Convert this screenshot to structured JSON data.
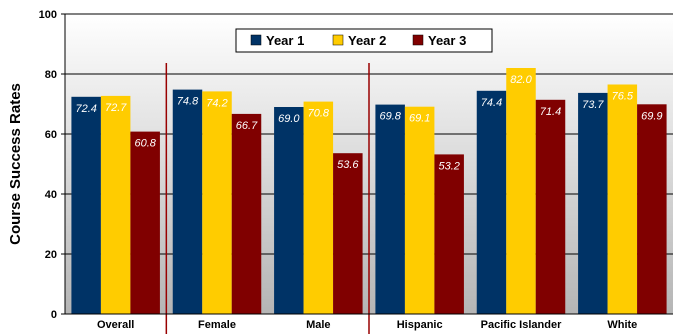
{
  "chart_data": {
    "type": "bar",
    "title": "",
    "xlabel": "",
    "ylabel": "Course Success Rates",
    "ylim": [
      0,
      100
    ],
    "yticks": [
      0,
      20,
      40,
      60,
      80,
      100
    ],
    "grid": true,
    "legend_position": "top-right",
    "categories": [
      "Overall",
      "Female",
      "Male",
      "Hispanic",
      "Pacific Islander",
      "White"
    ],
    "group_separators_after": [
      "Overall",
      "Male"
    ],
    "series": [
      {
        "name": "Year 1",
        "color": "#003366",
        "label_color": "#ffffff",
        "values": [
          72.4,
          74.8,
          69.0,
          69.8,
          74.4,
          73.7
        ]
      },
      {
        "name": "Year 2",
        "color": "#ffcc00",
        "label_color": "#ffffff",
        "values": [
          72.7,
          74.2,
          70.8,
          69.1,
          82.0,
          76.5
        ]
      },
      {
        "name": "Year 3",
        "color": "#800000",
        "label_color": "#ffffff",
        "values": [
          60.8,
          66.7,
          53.6,
          53.2,
          71.4,
          69.9
        ]
      }
    ],
    "colors": {
      "plot_background": "#c0c0c0",
      "separator": "#990000"
    }
  }
}
